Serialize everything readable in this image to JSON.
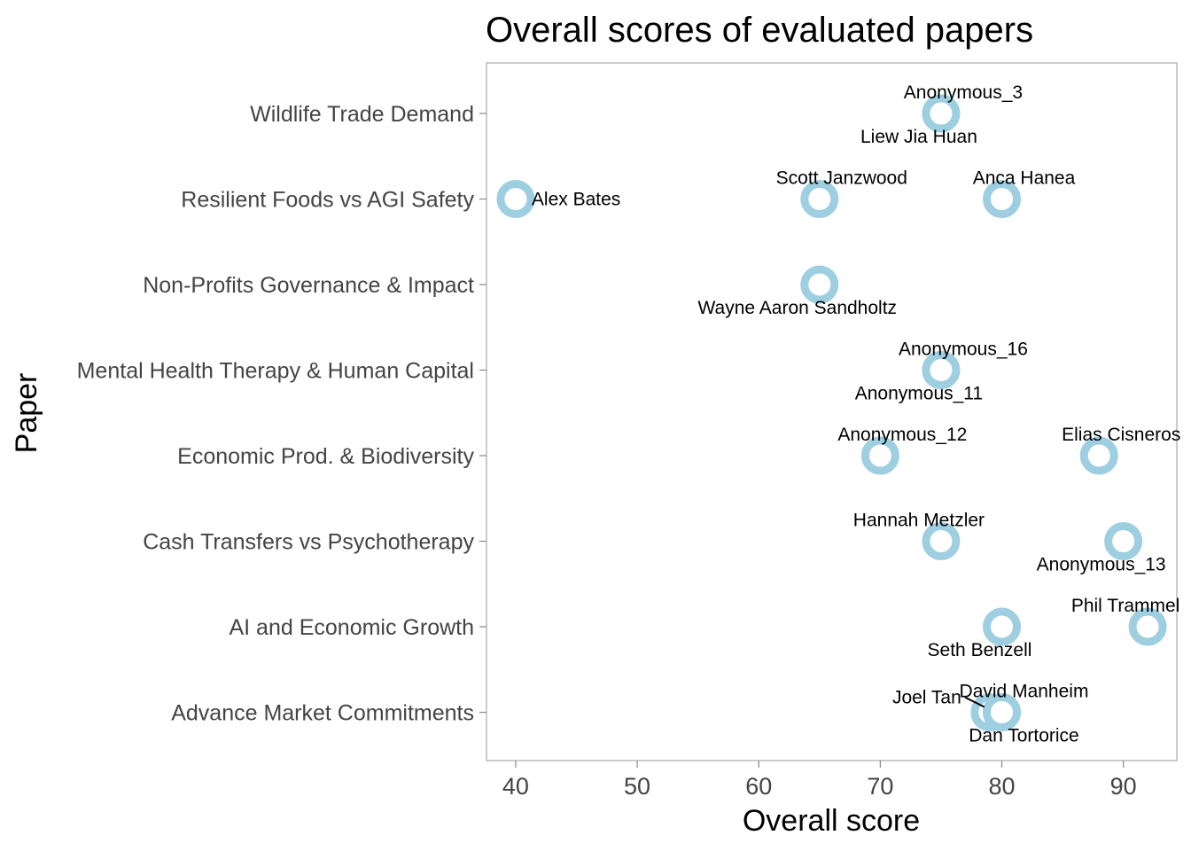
{
  "chart_data": {
    "type": "scatter",
    "title": "Overall scores of evaluated papers",
    "xlabel": "Overall score",
    "ylabel": "Paper",
    "xlim": [
      37.6,
      94.4
    ],
    "xticks": [
      40,
      50,
      60,
      70,
      80,
      90
    ],
    "categories": [
      "Wildlife Trade Demand",
      "Resilient Foods vs AGI Safety",
      "Non-Profits Governance & Impact",
      "Mental Health Therapy & Human Capital",
      "Economic Prod. & Biodiversity",
      "Cash Transfers vs Psychotherapy",
      "AI and Economic Growth",
      "Advance Market Commitments"
    ],
    "grid": false,
    "legend": "none",
    "point_color": "#9ECFE0",
    "points": [
      {
        "paper": "Wildlife Trade Demand",
        "evaluator": "Anonymous_3",
        "score": 75,
        "label_pos": "above"
      },
      {
        "paper": "Wildlife Trade Demand",
        "evaluator": "Liew Jia Huan",
        "score": 75,
        "label_pos": "below-left"
      },
      {
        "paper": "Resilient Foods vs AGI Safety",
        "evaluator": "Alex Bates",
        "score": 40,
        "label_pos": "right"
      },
      {
        "paper": "Resilient Foods vs AGI Safety",
        "evaluator": "Scott Janzwood",
        "score": 65,
        "label_pos": "above-right"
      },
      {
        "paper": "Resilient Foods vs AGI Safety",
        "evaluator": "Anca Hanea",
        "score": 80,
        "label_pos": "above-right"
      },
      {
        "paper": "Non-Profits Governance & Impact",
        "evaluator": "Wayne Aaron Sandholtz",
        "score": 65,
        "label_pos": "below-left"
      },
      {
        "paper": "Mental Health Therapy & Human Capital",
        "evaluator": "Anonymous_16",
        "score": 75,
        "label_pos": "above-right"
      },
      {
        "paper": "Mental Health Therapy & Human Capital",
        "evaluator": "Anonymous_11",
        "score": 75,
        "label_pos": "below-left"
      },
      {
        "paper": "Economic Prod. & Biodiversity",
        "evaluator": "Anonymous_12",
        "score": 70,
        "label_pos": "above-right"
      },
      {
        "paper": "Economic Prod. & Biodiversity",
        "evaluator": "Elias Cisneros",
        "score": 88,
        "label_pos": "above"
      },
      {
        "paper": "Cash Transfers vs Psychotherapy",
        "evaluator": "Hannah Metzler",
        "score": 75,
        "label_pos": "above-left"
      },
      {
        "paper": "Cash Transfers vs Psychotherapy",
        "evaluator": "Anonymous_13",
        "score": 90,
        "label_pos": "below-left"
      },
      {
        "paper": "AI and Economic Growth",
        "evaluator": "Phil Trammel",
        "score": 92,
        "label_pos": "above-left"
      },
      {
        "paper": "AI and Economic Growth",
        "evaluator": "Seth Benzell",
        "score": 80,
        "label_pos": "below-left"
      },
      {
        "paper": "Advance Market Commitments",
        "evaluator": "Joel Tan",
        "score": 79,
        "label_pos": "left-leader"
      },
      {
        "paper": "Advance Market Commitments",
        "evaluator": "David Manheim",
        "score": 80,
        "label_pos": "above-right"
      },
      {
        "paper": "Advance Market Commitments",
        "evaluator": "Dan Tortorice",
        "score": 80,
        "label_pos": "below-right"
      }
    ]
  }
}
